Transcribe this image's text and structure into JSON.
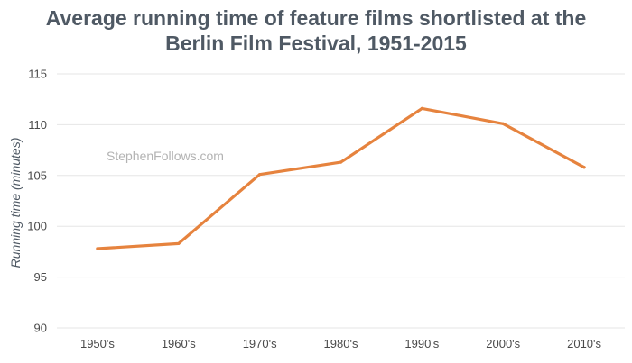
{
  "chart_data": {
    "type": "line",
    "title_lines": [
      "Average running time of feature films shortlisted at the",
      "Berlin Film Festival, 1951-2015"
    ],
    "xlabel": "",
    "ylabel": "Running time (minutes)",
    "categories": [
      "1950's",
      "1960's",
      "1970's",
      "1980's",
      "1990's",
      "2000's",
      "2010's"
    ],
    "series": [
      {
        "values": [
          97.8,
          98.3,
          105.1,
          106.3,
          111.6,
          110.1,
          105.8
        ],
        "color": "#e6833e"
      }
    ],
    "ylim": [
      90,
      115
    ],
    "yticks": [
      90,
      95,
      100,
      105,
      110,
      115
    ],
    "grid": "horizontal",
    "legend": "none"
  },
  "watermark": "StephenFollows.com"
}
